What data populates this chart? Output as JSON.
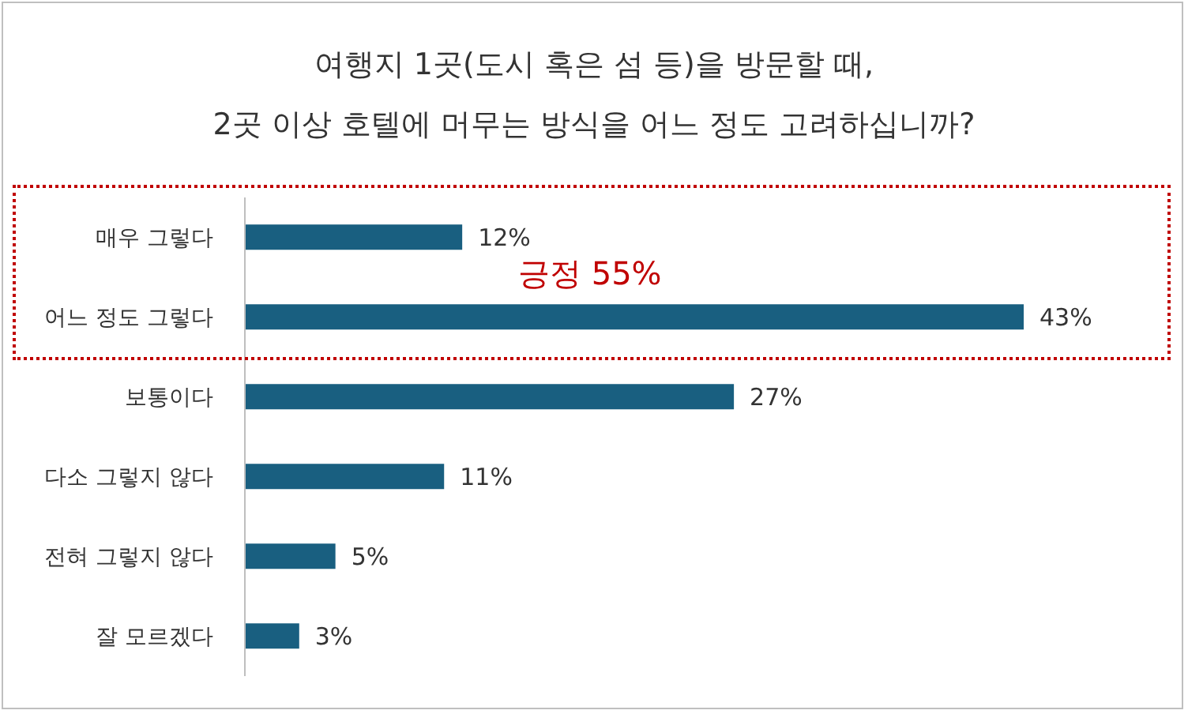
{
  "chart_data": {
    "type": "bar",
    "orientation": "horizontal",
    "title": "여행지 1곳(도시 혹은 섬 등)을 방문할 때,\n2곳 이상 호텔에 머무는 방식을 어느 정도 고려하십니까?",
    "categories": [
      "매우 그렇다",
      "어느 정도 그렇다",
      "보통이다",
      "다소 그렇지 않다",
      "전혀 그렇지 않다",
      "잘 모르겠다"
    ],
    "values": [
      12,
      43,
      27,
      11,
      5,
      3
    ],
    "value_labels": [
      "12%",
      "43%",
      "27%",
      "11%",
      "5%",
      "3%"
    ],
    "color": "#195f80",
    "annotations": [
      "긍정 55%"
    ],
    "grid": false,
    "legend": false
  }
}
